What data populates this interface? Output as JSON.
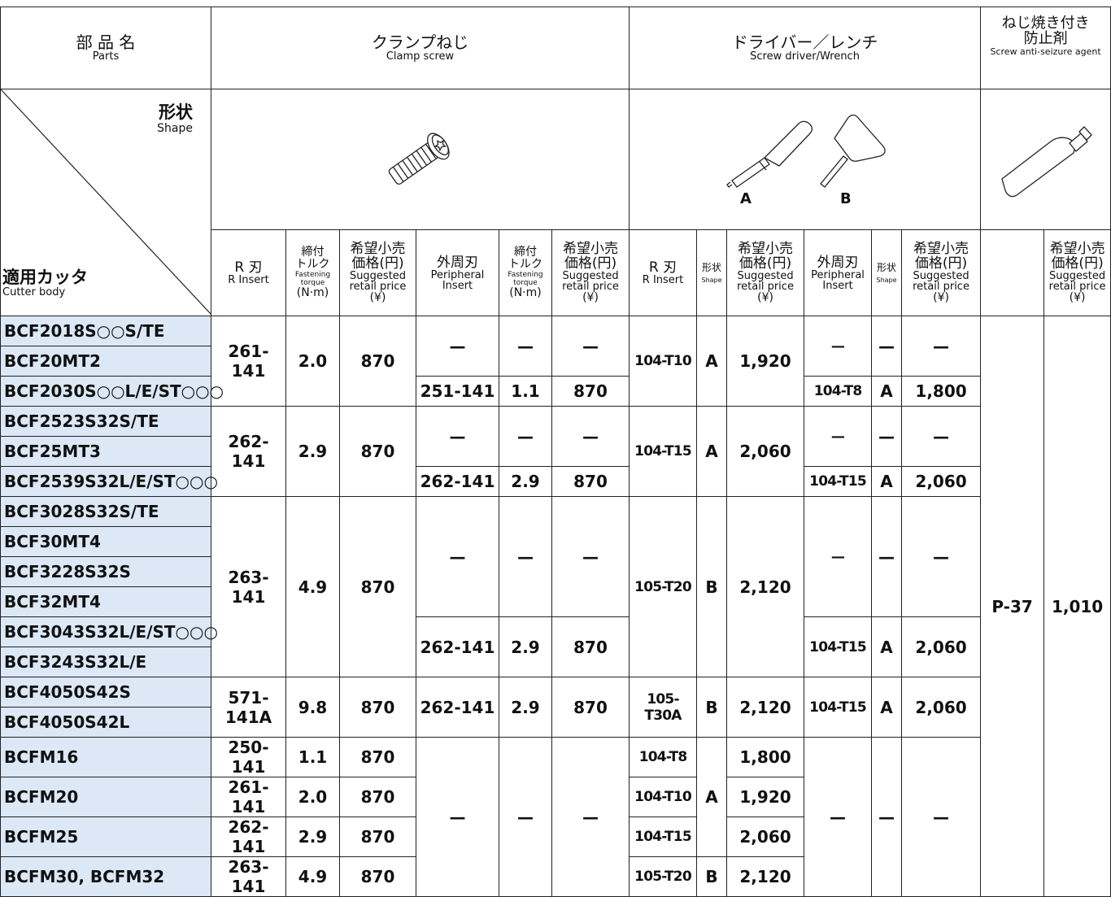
{
  "header": {
    "parts": {
      "ja": "部 品 名",
      "en": "Parts"
    },
    "clamp_screw": {
      "ja": "クランプねじ",
      "en": "Clamp screw"
    },
    "driver": {
      "ja": "ドライバー／レンチ",
      "en": "Screw driver/Wrench"
    },
    "agent": {
      "ja": [
        "ねじ焼き付き",
        "防止剤"
      ],
      "en": "Screw anti-seizure agent"
    }
  },
  "shape_row": {
    "shape_ja": "形状",
    "shape_en": "Shape",
    "cutter_ja": "適用カッタ",
    "cutter_en": "Cutter body",
    "driver_a": "A",
    "driver_b": "B"
  },
  "subheader": [
    {
      "ja": [
        "R 刃"
      ],
      "en": [
        "R Insert"
      ]
    },
    {
      "ja": [
        "締付",
        "トルク"
      ],
      "en": [
        "Fastening",
        "torque"
      ],
      "unit": "(N·m)"
    },
    {
      "ja": [
        "希望小売",
        "価格(円)"
      ],
      "en": [
        "Suggested",
        "retail price"
      ],
      "unit": "(¥)"
    },
    {
      "ja": [
        "外周刃"
      ],
      "en": [
        "Peripheral",
        "Insert"
      ]
    },
    {
      "ja": [
        "締付",
        "トルク"
      ],
      "en": [
        "Fastening",
        "torque"
      ],
      "unit": "(N·m)"
    },
    {
      "ja": [
        "希望小売",
        "価格(円)"
      ],
      "en": [
        "Suggested",
        "retail price"
      ],
      "unit": "(¥)"
    },
    {
      "ja": [
        "R 刃"
      ],
      "en": [
        "R Insert"
      ]
    },
    {
      "ja": [
        "形状"
      ],
      "en": [
        "Shape"
      ]
    },
    {
      "ja": [
        "希望小売",
        "価格(円)"
      ],
      "en": [
        "Suggested",
        "retail price"
      ],
      "unit": "(¥)"
    },
    {
      "ja": [
        "外周刃"
      ],
      "en": [
        "Peripheral",
        "Insert"
      ]
    },
    {
      "ja": [
        "形状"
      ],
      "en": [
        "Shape"
      ]
    },
    {
      "ja": [
        "希望小売",
        "価格(円)"
      ],
      "en": [
        "Suggested",
        "retail price"
      ],
      "unit": "(¥)"
    },
    {
      "ja": [
        "希望小売",
        "価格(円)"
      ],
      "en": [
        "Suggested",
        "retail price"
      ],
      "unit": "(¥)"
    }
  ],
  "rows": [
    [
      "BCF2018S○○S/TE",
      "261-141",
      "2.0",
      "870",
      "—",
      "—",
      "—",
      "104-T10",
      "A",
      "1,920",
      "—",
      "—",
      "—",
      "P-37",
      "1,010"
    ],
    [
      "BCF20MT2"
    ],
    [
      "BCF2030S○○L/E/ST○○○",
      "251-141",
      "1.1",
      "870",
      "104-T8",
      "A",
      "1,800"
    ],
    [
      "BCF2523S32S/TE",
      "262-141",
      "2.9",
      "870",
      "—",
      "—",
      "—",
      "104-T15",
      "A",
      "2,060",
      "—",
      "—",
      "—"
    ],
    [
      "BCF25MT3"
    ],
    [
      "BCF2539S32L/E/ST○○○",
      "262-141",
      "2.9",
      "870",
      "104-T15",
      "A",
      "2,060"
    ],
    [
      "BCF3028S32S/TE",
      "263-141",
      "4.9",
      "870",
      "—",
      "—",
      "—",
      "105-T20",
      "B",
      "2,120",
      "—",
      "—",
      "—"
    ],
    [
      "BCF30MT4"
    ],
    [
      "BCF3228S32S"
    ],
    [
      "BCF32MT4"
    ],
    [
      "BCF3043S32L/E/ST○○○",
      "262-141",
      "2.9",
      "870",
      "104-T15",
      "A",
      "2,060"
    ],
    [
      "BCF3243S32L/E"
    ],
    [
      "BCF4050S42S",
      "571-141A",
      "9.8",
      "870",
      "262-141",
      "2.9",
      "870",
      "105-T30A",
      "B",
      "2,120",
      "104-T15",
      "A",
      "2,060"
    ],
    [
      "BCF4050S42L"
    ],
    [
      "BCFM16",
      "250-141",
      "1.1",
      "870",
      "—",
      "—",
      "—",
      "104-T8",
      "A",
      "1,800",
      "—",
      "—",
      "—"
    ],
    [
      "BCFM20",
      "261-141",
      "2.0",
      "870",
      "104-T10",
      "1,920"
    ],
    [
      "BCFM25",
      "262-141",
      "2.9",
      "870",
      "104-T15",
      "2,060"
    ],
    [
      "BCFM30, BCFM32",
      "263-141",
      "4.9",
      "870",
      "105-T20",
      "B",
      "2,120"
    ]
  ]
}
